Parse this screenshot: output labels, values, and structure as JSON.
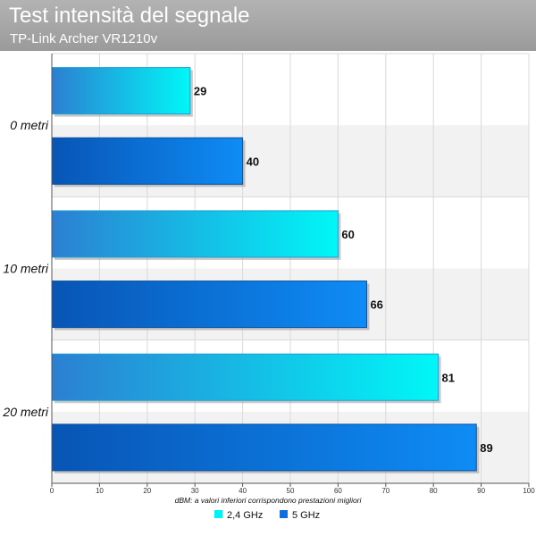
{
  "header": {
    "title": "Test intensità del segnale",
    "subtitle": "TP-Link Archer VR1210v"
  },
  "colors": {
    "header_bg": "#a6a6a6",
    "series_24": "#00f2f2",
    "series_5": "#0a7fef",
    "band_alt": "#f2f2f2",
    "grid": "#d9d9d9"
  },
  "chart_data": {
    "type": "bar",
    "orientation": "horizontal",
    "title": "Test intensità del segnale",
    "subtitle": "TP-Link Archer VR1210v",
    "categories": [
      "0 metri",
      "10 metri",
      "20 metri"
    ],
    "series": [
      {
        "name": "2,4 GHz",
        "values": [
          29,
          60,
          81
        ],
        "color": "#00f2f2"
      },
      {
        "name": "5 GHz",
        "values": [
          40,
          66,
          89
        ],
        "color": "#0a7fef"
      }
    ],
    "xlabel": "dBM: a valori inferiori corrispondono prestazioni migliori",
    "ylabel": "",
    "xlim": [
      0,
      100
    ],
    "xticks": [
      0,
      10,
      20,
      30,
      40,
      50,
      60,
      70,
      80,
      90,
      100
    ],
    "grid": true,
    "legend": "bottom-center",
    "data_labels": true
  }
}
